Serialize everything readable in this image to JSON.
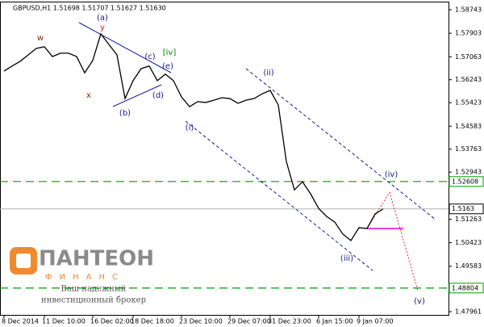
{
  "chart_data": {
    "type": "line",
    "title": "GBPUSD,H1  1.51698 1.51707 1.51627 1.51630",
    "categories": [
      "8 Dec 2014",
      null,
      null,
      null,
      null,
      "11 Dec 10:00",
      null,
      null,
      null,
      null,
      null,
      "16 Dec 02:00",
      null,
      null,
      null,
      null,
      "18 Dec 18:00",
      null,
      null,
      null,
      null,
      null,
      "23 Dec 10:00",
      null,
      null,
      null,
      null,
      null,
      "29 Dec 07:00",
      null,
      null,
      null,
      null,
      "31 Dec 23:00",
      null,
      null,
      null,
      null,
      null,
      "6 Jan 15:00",
      null,
      null,
      null,
      null,
      "9 Jan 07:00",
      null,
      null,
      null
    ],
    "series": [
      {
        "name": "GBPUSD",
        "color": "#000000",
        "values": [
          1.5655,
          1.5673,
          1.569,
          1.5713,
          1.5736,
          1.5742,
          1.5707,
          1.5719,
          1.5719,
          1.5707,
          1.5649,
          1.5693,
          1.5788,
          1.575,
          1.5713,
          1.5557,
          1.5621,
          1.5664,
          1.5673,
          1.5621,
          1.5644,
          1.5621,
          1.5563,
          1.5528,
          1.5546,
          1.5543,
          1.5551,
          1.556,
          1.5557,
          1.554,
          1.5551,
          1.5557,
          1.5574,
          1.5586,
          1.5534,
          1.5332,
          1.5231,
          1.526,
          1.5217,
          1.5165,
          1.5136,
          1.5116,
          1.5073,
          1.505,
          1.5096,
          1.5093,
          1.5145,
          1.5163
        ]
      }
    ],
    "ylim": [
      1.47846,
      1.59089
    ],
    "yticks": [
      1.58743,
      1.57903,
      1.57063,
      1.56243,
      1.55423,
      1.54583,
      1.53763,
      1.52943,
      1.51263,
      1.50423,
      1.49583,
      1.47961
    ],
    "price_levels": [
      {
        "value": 1.52608,
        "color": "#00a000"
      },
      {
        "value": 1.5163,
        "color": "#b0b0b0"
      },
      {
        "value": 1.48804,
        "color": "#00a000"
      }
    ],
    "annotations": [
      "(a)",
      "y",
      "w",
      "x",
      "(b)",
      "(c)",
      "(d)",
      "(e)",
      "[iv]",
      "(i)",
      "(ii)",
      "(iii)",
      "(iv)",
      "(v)"
    ]
  },
  "logo": {
    "name": "ПАНТЕОН",
    "sub": "ФИНАНС",
    "slogan1": "Ваш надежный",
    "slogan2": "инвестиционный брокер"
  }
}
